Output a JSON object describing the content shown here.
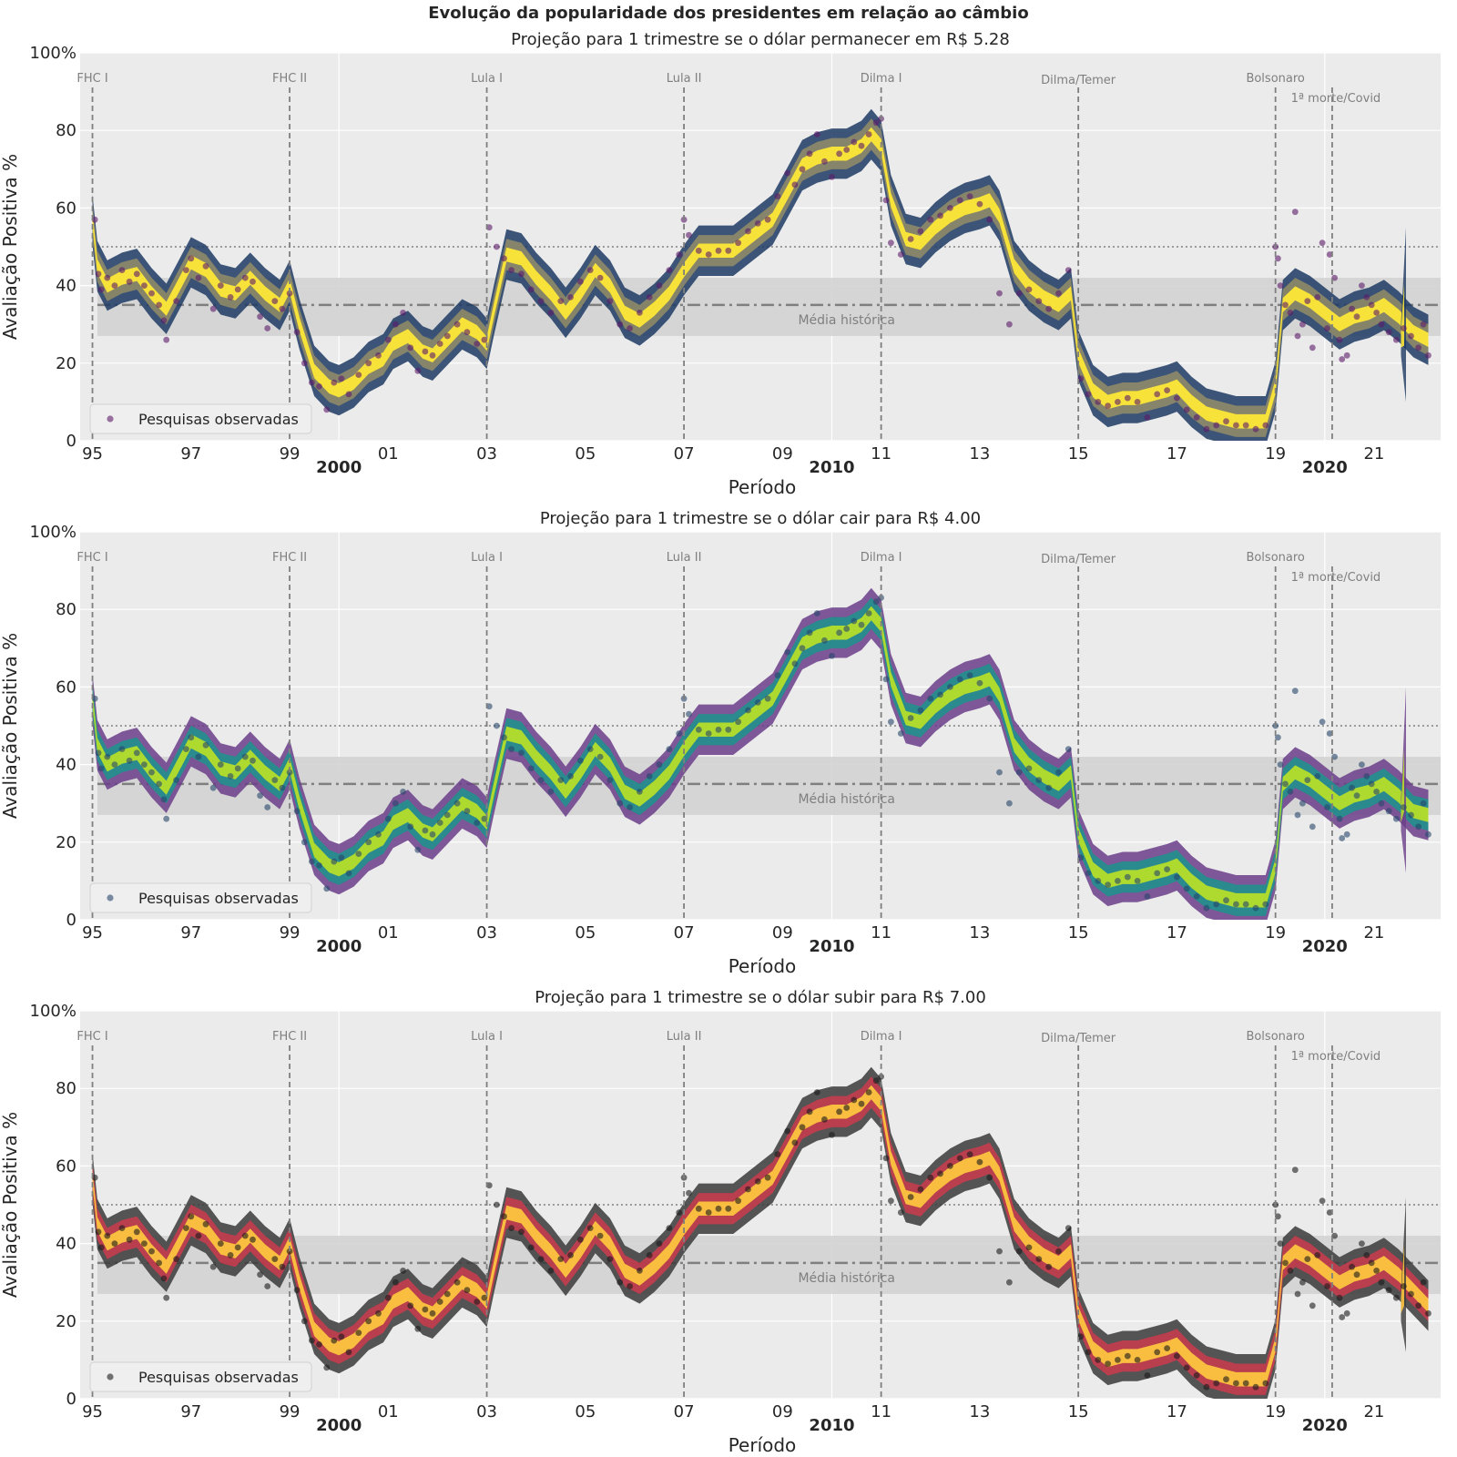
{
  "figure_title": "Evolução da popularidade dos presidentes em relação ao câmbio",
  "ylabel": "Avaliação Positiva %",
  "xlabel": "Período",
  "legend_label": "Pesquisas observadas",
  "mean_label": "Média histórica",
  "ytick_labels": [
    "0",
    "20",
    "40",
    "60",
    "80",
    "100%"
  ],
  "xtick_labels": [
    "95",
    "97",
    "99",
    "01",
    "03",
    "05",
    "07",
    "09",
    "11",
    "13",
    "15",
    "17",
    "19",
    "21"
  ],
  "decade_labels": [
    "2000",
    "2010",
    "2020"
  ],
  "colors": {
    "background": "#ebebeb",
    "grid": "#ffffff",
    "band": "#d3d3d3",
    "reference": "#7f7f7f",
    "text": "#262626"
  },
  "chart_data": [
    {
      "type": "line",
      "title": "Projeção para 1 trimestre se o dólar permanecer em R$ 5.28",
      "xlabel": "Período",
      "ylabel": "Avaliação Positiva %",
      "xlim": [
        1994.75,
        2022.35
      ],
      "ylim": [
        0,
        100
      ],
      "grid": true,
      "legend": "bottom-left",
      "palette": "cividis",
      "colors": {
        "band_inner": "#fde737",
        "band_mid": "#8e8a68",
        "band_outer": "#1d3a63",
        "points": "#5b1b6b"
      },
      "x": [
        1995.0,
        1995.1,
        1995.3,
        1995.6,
        1995.9,
        1996.2,
        1996.5,
        1996.75,
        1997.0,
        1997.3,
        1997.6,
        1997.9,
        1998.2,
        1998.5,
        1998.8,
        1999.0,
        1999.2,
        1999.5,
        1999.8,
        2000.0,
        2000.3,
        2000.6,
        2000.9,
        2001.1,
        2001.4,
        2001.7,
        2001.9,
        2002.2,
        2002.5,
        2002.8,
        2003.0,
        2003.15,
        2003.4,
        2003.7,
        2004.0,
        2004.3,
        2004.6,
        2004.9,
        2005.2,
        2005.5,
        2005.8,
        2006.1,
        2006.4,
        2006.7,
        2007.0,
        2007.3,
        2007.6,
        2008.0,
        2008.4,
        2008.8,
        2009.1,
        2009.4,
        2009.7,
        2010.0,
        2010.3,
        2010.6,
        2010.8,
        2011.0,
        2011.2,
        2011.5,
        2011.8,
        2012.1,
        2012.4,
        2012.7,
        2013.0,
        2013.2,
        2013.4,
        2013.7,
        2014.0,
        2014.3,
        2014.6,
        2014.85,
        2015.0,
        2015.3,
        2015.6,
        2015.9,
        2016.2,
        2016.5,
        2016.8,
        2017.0,
        2017.3,
        2017.6,
        2017.9,
        2018.2,
        2018.5,
        2018.8,
        2019.0,
        2019.15,
        2019.4,
        2019.7,
        2020.0,
        2020.3,
        2020.6,
        2020.9,
        2021.2,
        2021.5,
        2021.8,
        2022.1
      ],
      "y": [
        57,
        45,
        40,
        42,
        43,
        38,
        34,
        40,
        46,
        44,
        39,
        38,
        42,
        38,
        35,
        40,
        30,
        18,
        14,
        13,
        15,
        19,
        21,
        25,
        27,
        23,
        22,
        26,
        30,
        28,
        25,
        34,
        48,
        47,
        42,
        38,
        33,
        38,
        44,
        40,
        33,
        31,
        34,
        38,
        44,
        49,
        49,
        49,
        53,
        57,
        64,
        71,
        73,
        74,
        74,
        76,
        79,
        76,
        62,
        52,
        51,
        55,
        58,
        60,
        61,
        62,
        58,
        45,
        40,
        37,
        35,
        38,
        22,
        13,
        10,
        11,
        11,
        12,
        13,
        14,
        10,
        7,
        6,
        5,
        5,
        5,
        14,
        35,
        38,
        36,
        33,
        30,
        32,
        33,
        35,
        32,
        28,
        26
      ],
      "band_width": 6.5,
      "projection_range": [
        10,
        55
      ]
    },
    {
      "type": "line",
      "title": "Projeção para 1 trimestre se o dólar cair para R$ 4.00",
      "xlabel": "Período",
      "ylabel": "Avaliação Positiva %",
      "xlim": [
        1994.75,
        2022.35
      ],
      "ylim": [
        0,
        100
      ],
      "grid": true,
      "legend": "bottom-left",
      "palette": "viridis",
      "colors": {
        "band_inner": "#b5de2b",
        "band_mid": "#21908d",
        "band_outer": "#6a3d8a",
        "points": "#26466b"
      },
      "x": [
        1995.0,
        1995.1,
        1995.3,
        1995.6,
        1995.9,
        1996.2,
        1996.5,
        1996.75,
        1997.0,
        1997.3,
        1997.6,
        1997.9,
        1998.2,
        1998.5,
        1998.8,
        1999.0,
        1999.2,
        1999.5,
        1999.8,
        2000.0,
        2000.3,
        2000.6,
        2000.9,
        2001.1,
        2001.4,
        2001.7,
        2001.9,
        2002.2,
        2002.5,
        2002.8,
        2003.0,
        2003.15,
        2003.4,
        2003.7,
        2004.0,
        2004.3,
        2004.6,
        2004.9,
        2005.2,
        2005.5,
        2005.8,
        2006.1,
        2006.4,
        2006.7,
        2007.0,
        2007.3,
        2007.6,
        2008.0,
        2008.4,
        2008.8,
        2009.1,
        2009.4,
        2009.7,
        2010.0,
        2010.3,
        2010.6,
        2010.8,
        2011.0,
        2011.2,
        2011.5,
        2011.8,
        2012.1,
        2012.4,
        2012.7,
        2013.0,
        2013.2,
        2013.4,
        2013.7,
        2014.0,
        2014.3,
        2014.6,
        2014.85,
        2015.0,
        2015.3,
        2015.6,
        2015.9,
        2016.2,
        2016.5,
        2016.8,
        2017.0,
        2017.3,
        2017.6,
        2017.9,
        2018.2,
        2018.5,
        2018.8,
        2019.0,
        2019.15,
        2019.4,
        2019.7,
        2020.0,
        2020.3,
        2020.6,
        2020.9,
        2021.2,
        2021.5,
        2021.8,
        2022.1
      ],
      "y": [
        57,
        45,
        40,
        42,
        43,
        38,
        34,
        40,
        46,
        44,
        39,
        38,
        42,
        38,
        35,
        40,
        30,
        18,
        14,
        13,
        15,
        19,
        21,
        25,
        27,
        23,
        22,
        26,
        30,
        28,
        25,
        34,
        48,
        47,
        42,
        38,
        33,
        38,
        44,
        40,
        33,
        31,
        34,
        38,
        44,
        49,
        49,
        49,
        53,
        57,
        64,
        71,
        73,
        74,
        74,
        76,
        79,
        76,
        62,
        52,
        51,
        55,
        58,
        60,
        61,
        62,
        58,
        45,
        40,
        37,
        35,
        38,
        22,
        13,
        10,
        11,
        11,
        12,
        13,
        14,
        10,
        7,
        6,
        5,
        5,
        5,
        14,
        35,
        38,
        36,
        33,
        30,
        32,
        33,
        35,
        32,
        28,
        27
      ],
      "band_width": 6.5,
      "projection_range": [
        12,
        60
      ]
    },
    {
      "type": "line",
      "title": "Projeção para 1 trimestre se o dólar subir para R$ 7.00",
      "xlabel": "Período",
      "ylabel": "Avaliação Positiva %",
      "xlim": [
        1994.75,
        2022.35
      ],
      "ylim": [
        0,
        100
      ],
      "grid": true,
      "legend": "bottom-left",
      "palette": "inferno",
      "colors": {
        "band_inner": "#fcc43f",
        "band_mid": "#c43c4e",
        "band_outer": "#3a3a3a",
        "points": "#1a1a1a"
      },
      "x": [
        1995.0,
        1995.1,
        1995.3,
        1995.6,
        1995.9,
        1996.2,
        1996.5,
        1996.75,
        1997.0,
        1997.3,
        1997.6,
        1997.9,
        1998.2,
        1998.5,
        1998.8,
        1999.0,
        1999.2,
        1999.5,
        1999.8,
        2000.0,
        2000.3,
        2000.6,
        2000.9,
        2001.1,
        2001.4,
        2001.7,
        2001.9,
        2002.2,
        2002.5,
        2002.8,
        2003.0,
        2003.15,
        2003.4,
        2003.7,
        2004.0,
        2004.3,
        2004.6,
        2004.9,
        2005.2,
        2005.5,
        2005.8,
        2006.1,
        2006.4,
        2006.7,
        2007.0,
        2007.3,
        2007.6,
        2008.0,
        2008.4,
        2008.8,
        2009.1,
        2009.4,
        2009.7,
        2010.0,
        2010.3,
        2010.6,
        2010.8,
        2011.0,
        2011.2,
        2011.5,
        2011.8,
        2012.1,
        2012.4,
        2012.7,
        2013.0,
        2013.2,
        2013.4,
        2013.7,
        2014.0,
        2014.3,
        2014.6,
        2014.85,
        2015.0,
        2015.3,
        2015.6,
        2015.9,
        2016.2,
        2016.5,
        2016.8,
        2017.0,
        2017.3,
        2017.6,
        2017.9,
        2018.2,
        2018.5,
        2018.8,
        2019.0,
        2019.15,
        2019.4,
        2019.7,
        2020.0,
        2020.3,
        2020.6,
        2020.9,
        2021.2,
        2021.5,
        2021.8,
        2022.1
      ],
      "y": [
        57,
        45,
        40,
        42,
        43,
        38,
        34,
        40,
        46,
        44,
        39,
        38,
        42,
        38,
        35,
        40,
        30,
        18,
        14,
        13,
        15,
        19,
        21,
        25,
        27,
        23,
        22,
        26,
        30,
        28,
        25,
        34,
        48,
        47,
        42,
        38,
        33,
        38,
        44,
        40,
        33,
        31,
        34,
        38,
        44,
        49,
        49,
        49,
        53,
        57,
        64,
        71,
        73,
        74,
        74,
        76,
        79,
        76,
        62,
        52,
        51,
        55,
        58,
        60,
        61,
        62,
        58,
        45,
        40,
        37,
        35,
        38,
        22,
        13,
        10,
        11,
        11,
        12,
        13,
        14,
        10,
        7,
        6,
        5,
        5,
        5,
        14,
        35,
        38,
        36,
        33,
        30,
        32,
        33,
        35,
        32,
        28,
        24
      ],
      "band_width": 6.5,
      "projection_range": [
        12,
        52
      ]
    }
  ],
  "reference_lines": {
    "threshold": 50,
    "historical_mean": 35,
    "historical_band": [
      27,
      42
    ]
  },
  "events": [
    {
      "label": "FHC I",
      "x": 1995.0,
      "row": 0
    },
    {
      "label": "FHC II",
      "x": 1999.0,
      "row": 0
    },
    {
      "label": "Lula I",
      "x": 2003.0,
      "row": 0
    },
    {
      "label": "Lula II",
      "x": 2007.0,
      "row": 0
    },
    {
      "label": "Dilma I",
      "x": 2011.0,
      "row": 0
    },
    {
      "label": "Dilma/Temer",
      "x": 2015.0,
      "row": 0
    },
    {
      "label": "Bolsonaro",
      "x": 2019.0,
      "row": 0
    },
    {
      "label": "1ª morte/Covid",
      "x": 2020.15,
      "row": 1
    }
  ],
  "observed_polls": [
    [
      1995.05,
      57
    ],
    [
      1995.12,
      43
    ],
    [
      1995.18,
      39
    ],
    [
      1995.3,
      42
    ],
    [
      1995.45,
      40
    ],
    [
      1995.6,
      44
    ],
    [
      1995.75,
      41
    ],
    [
      1995.9,
      43
    ],
    [
      1996.05,
      40
    ],
    [
      1996.2,
      38
    ],
    [
      1996.35,
      35
    ],
    [
      1996.45,
      31
    ],
    [
      1996.5,
      26
    ],
    [
      1996.7,
      36
    ],
    [
      1996.9,
      44
    ],
    [
      1997.0,
      47
    ],
    [
      1997.15,
      42
    ],
    [
      1997.3,
      45
    ],
    [
      1997.45,
      34
    ],
    [
      1997.6,
      40
    ],
    [
      1997.8,
      37
    ],
    [
      1997.95,
      39
    ],
    [
      1998.1,
      42
    ],
    [
      1998.25,
      41
    ],
    [
      1998.4,
      32
    ],
    [
      1998.55,
      29
    ],
    [
      1998.7,
      36
    ],
    [
      1998.85,
      34
    ],
    [
      1999.0,
      38
    ],
    [
      1999.15,
      28
    ],
    [
      1999.3,
      20
    ],
    [
      1999.45,
      15
    ],
    [
      1999.6,
      14
    ],
    [
      1999.75,
      8
    ],
    [
      1999.9,
      15
    ],
    [
      2000.05,
      16
    ],
    [
      2000.2,
      12
    ],
    [
      2000.4,
      17
    ],
    [
      2000.6,
      20
    ],
    [
      2000.8,
      22
    ],
    [
      2001.0,
      26
    ],
    [
      2001.15,
      30
    ],
    [
      2001.3,
      33
    ],
    [
      2001.45,
      24
    ],
    [
      2001.6,
      18
    ],
    [
      2001.75,
      23
    ],
    [
      2001.9,
      22
    ],
    [
      2002.05,
      25
    ],
    [
      2002.2,
      27
    ],
    [
      2002.4,
      30
    ],
    [
      2002.6,
      28
    ],
    [
      2002.8,
      25
    ],
    [
      2002.95,
      26
    ],
    [
      2003.05,
      55
    ],
    [
      2003.2,
      50
    ],
    [
      2003.35,
      47
    ],
    [
      2003.5,
      44
    ],
    [
      2003.7,
      43
    ],
    [
      2003.9,
      39
    ],
    [
      2004.1,
      36
    ],
    [
      2004.3,
      33
    ],
    [
      2004.5,
      36
    ],
    [
      2004.7,
      37
    ],
    [
      2004.9,
      41
    ],
    [
      2005.1,
      44
    ],
    [
      2005.3,
      42
    ],
    [
      2005.5,
      36
    ],
    [
      2005.7,
      30
    ],
    [
      2005.9,
      29
    ],
    [
      2006.1,
      33
    ],
    [
      2006.3,
      37
    ],
    [
      2006.5,
      40
    ],
    [
      2006.7,
      44
    ],
    [
      2006.9,
      48
    ],
    [
      2007.0,
      57
    ],
    [
      2007.1,
      53
    ],
    [
      2007.3,
      49
    ],
    [
      2007.5,
      48
    ],
    [
      2007.7,
      49
    ],
    [
      2007.9,
      49
    ],
    [
      2008.1,
      51
    ],
    [
      2008.3,
      54
    ],
    [
      2008.5,
      56
    ],
    [
      2008.7,
      57
    ],
    [
      2008.9,
      63
    ],
    [
      2009.1,
      69
    ],
    [
      2009.25,
      66
    ],
    [
      2009.4,
      70
    ],
    [
      2009.55,
      74
    ],
    [
      2009.7,
      79
    ],
    [
      2009.85,
      72
    ],
    [
      2010.0,
      68
    ],
    [
      2010.15,
      74
    ],
    [
      2010.3,
      75
    ],
    [
      2010.45,
      77
    ],
    [
      2010.6,
      76
    ],
    [
      2010.75,
      79
    ],
    [
      2010.9,
      82
    ],
    [
      2011.0,
      83
    ],
    [
      2011.1,
      62
    ],
    [
      2011.2,
      51
    ],
    [
      2011.4,
      48
    ],
    [
      2011.6,
      52
    ],
    [
      2011.8,
      54
    ],
    [
      2012.0,
      57
    ],
    [
      2012.2,
      58
    ],
    [
      2012.4,
      60
    ],
    [
      2012.6,
      62
    ],
    [
      2012.8,
      63
    ],
    [
      2013.0,
      61
    ],
    [
      2013.2,
      57
    ],
    [
      2013.4,
      38
    ],
    [
      2013.6,
      30
    ],
    [
      2013.8,
      38
    ],
    [
      2014.0,
      39
    ],
    [
      2014.2,
      36
    ],
    [
      2014.4,
      34
    ],
    [
      2014.6,
      38
    ],
    [
      2014.8,
      44
    ],
    [
      2015.05,
      16
    ],
    [
      2015.2,
      12
    ],
    [
      2015.4,
      10
    ],
    [
      2015.6,
      9
    ],
    [
      2015.8,
      10
    ],
    [
      2016.0,
      11
    ],
    [
      2016.2,
      10
    ],
    [
      2016.4,
      6
    ],
    [
      2016.6,
      12
    ],
    [
      2016.8,
      13
    ],
    [
      2017.0,
      11
    ],
    [
      2017.2,
      8
    ],
    [
      2017.4,
      6
    ],
    [
      2017.6,
      3
    ],
    [
      2017.8,
      4
    ],
    [
      2018.0,
      5
    ],
    [
      2018.2,
      4
    ],
    [
      2018.4,
      4
    ],
    [
      2018.6,
      3
    ],
    [
      2018.8,
      4
    ],
    [
      2019.0,
      50
    ],
    [
      2019.05,
      47
    ],
    [
      2019.1,
      40
    ],
    [
      2019.2,
      35
    ],
    [
      2019.3,
      33
    ],
    [
      2019.4,
      59
    ],
    [
      2019.45,
      27
    ],
    [
      2019.55,
      30
    ],
    [
      2019.65,
      36
    ],
    [
      2019.75,
      24
    ],
    [
      2019.85,
      37
    ],
    [
      2019.95,
      51
    ],
    [
      2020.05,
      29
    ],
    [
      2020.1,
      48
    ],
    [
      2020.2,
      42
    ],
    [
      2020.3,
      26
    ],
    [
      2020.35,
      21
    ],
    [
      2020.45,
      22
    ],
    [
      2020.55,
      34
    ],
    [
      2020.65,
      32
    ],
    [
      2020.75,
      40
    ],
    [
      2020.85,
      37
    ],
    [
      2020.95,
      35
    ],
    [
      2021.05,
      33
    ],
    [
      2021.15,
      30
    ],
    [
      2021.3,
      28
    ],
    [
      2021.45,
      26
    ],
    [
      2021.6,
      29
    ],
    [
      2021.75,
      27
    ],
    [
      2021.9,
      24
    ],
    [
      2022.0,
      30
    ],
    [
      2022.1,
      22
    ]
  ]
}
